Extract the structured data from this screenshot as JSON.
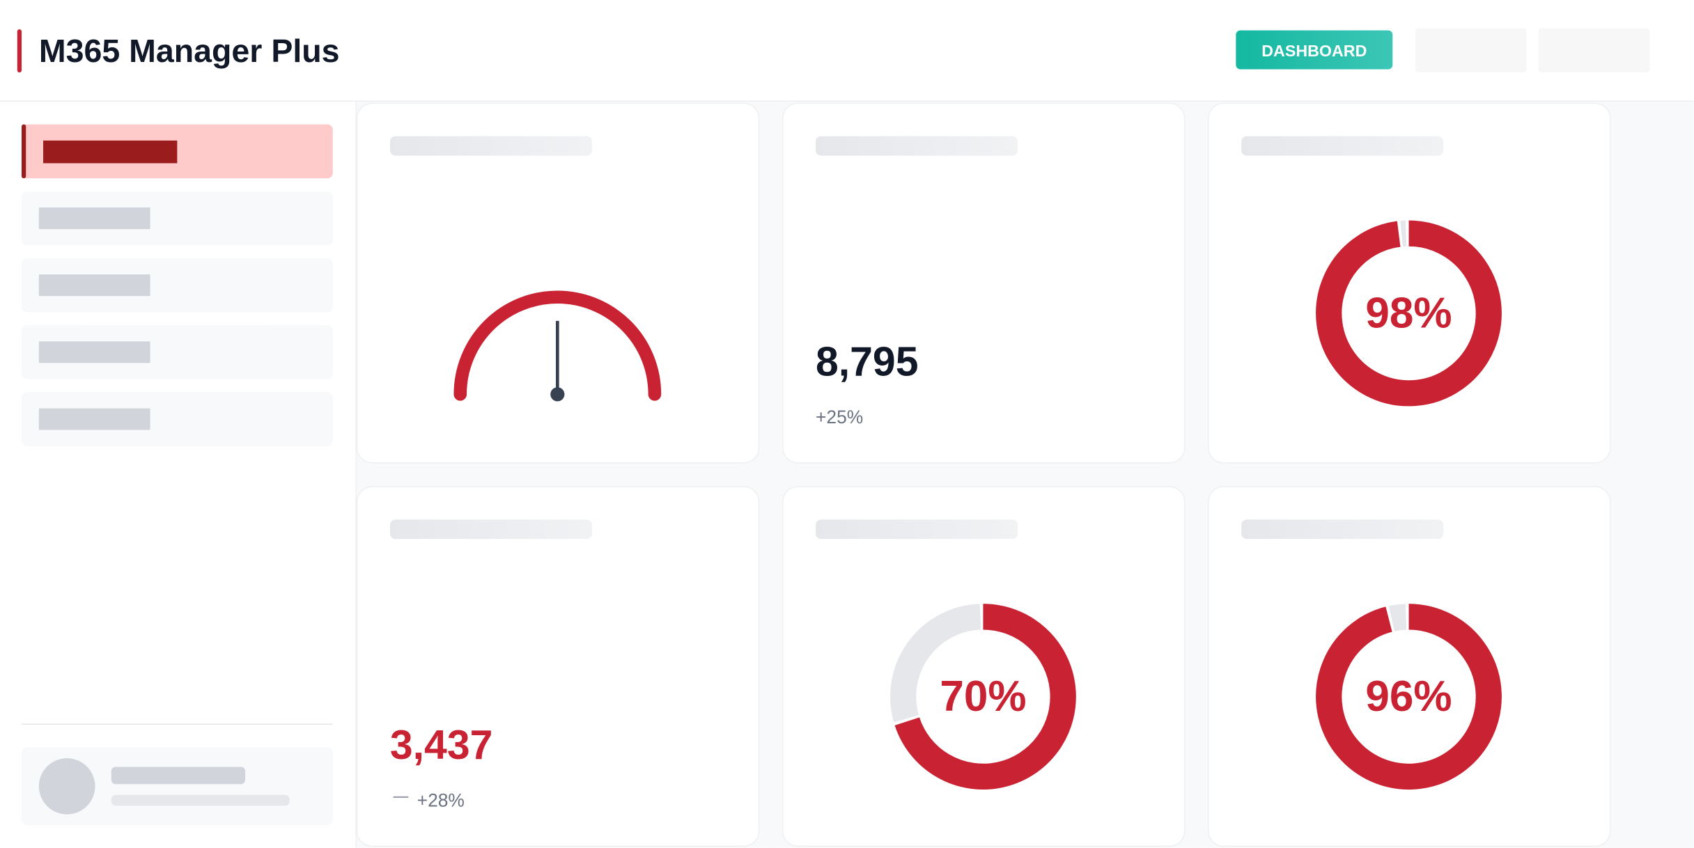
{
  "header": {
    "title": "M365 Manager Plus",
    "button": "DASHBOARD"
  },
  "cards": [
    {
      "kind": "gauge"
    },
    {
      "kind": "metric",
      "value": 8795,
      "value_label": "8,795",
      "change": 25,
      "change_label": "+25%",
      "color": "#111827"
    },
    {
      "kind": "donut",
      "value": 98,
      "value_label": "98%",
      "color": "#c92233"
    },
    {
      "kind": "metric",
      "value": 3437,
      "value_label": "3,437",
      "change": 28,
      "change_label": "+28%",
      "color": "#c92233"
    },
    {
      "kind": "donut",
      "value": 70,
      "value_label": "70%",
      "color": "#c92233"
    },
    {
      "kind": "donut",
      "value": 96,
      "value_label": "96%",
      "color": "#c92233"
    }
  ]
}
